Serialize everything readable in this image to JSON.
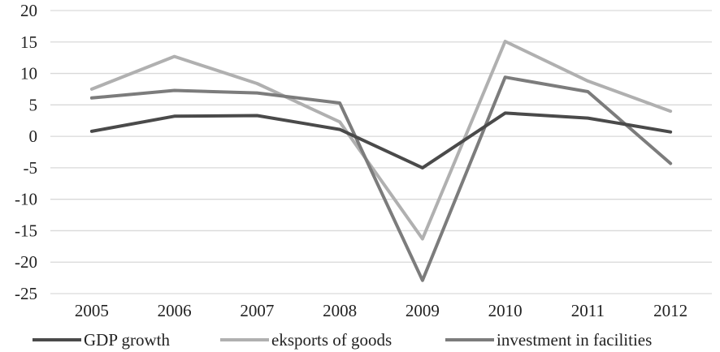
{
  "chart_data": {
    "type": "line",
    "title": "",
    "xlabel": "",
    "ylabel": "",
    "categories": [
      "2005",
      "2006",
      "2007",
      "2008",
      "2009",
      "2010",
      "2011",
      "2012"
    ],
    "ylim": [
      -25,
      20
    ],
    "yticks": [
      "20",
      "15",
      "10",
      "5",
      "0",
      "-5",
      "-10",
      "-15",
      "-20",
      "-25"
    ],
    "grid": true,
    "legend_position": "bottom",
    "series": [
      {
        "name": "GDP growth",
        "color": "#4a4a4a",
        "values": [
          0.8,
          3.2,
          3.3,
          1.1,
          -5.0,
          3.7,
          2.9,
          0.7
        ]
      },
      {
        "name": "eksports of goods",
        "color": "#b0b0b0",
        "values": [
          7.5,
          12.7,
          8.4,
          2.3,
          -16.3,
          15.1,
          8.8,
          4.0
        ]
      },
      {
        "name": "investment in facilities",
        "color": "#7c7c7c",
        "values": [
          6.1,
          7.3,
          6.9,
          5.3,
          -22.9,
          9.4,
          7.1,
          -4.3
        ]
      }
    ]
  }
}
